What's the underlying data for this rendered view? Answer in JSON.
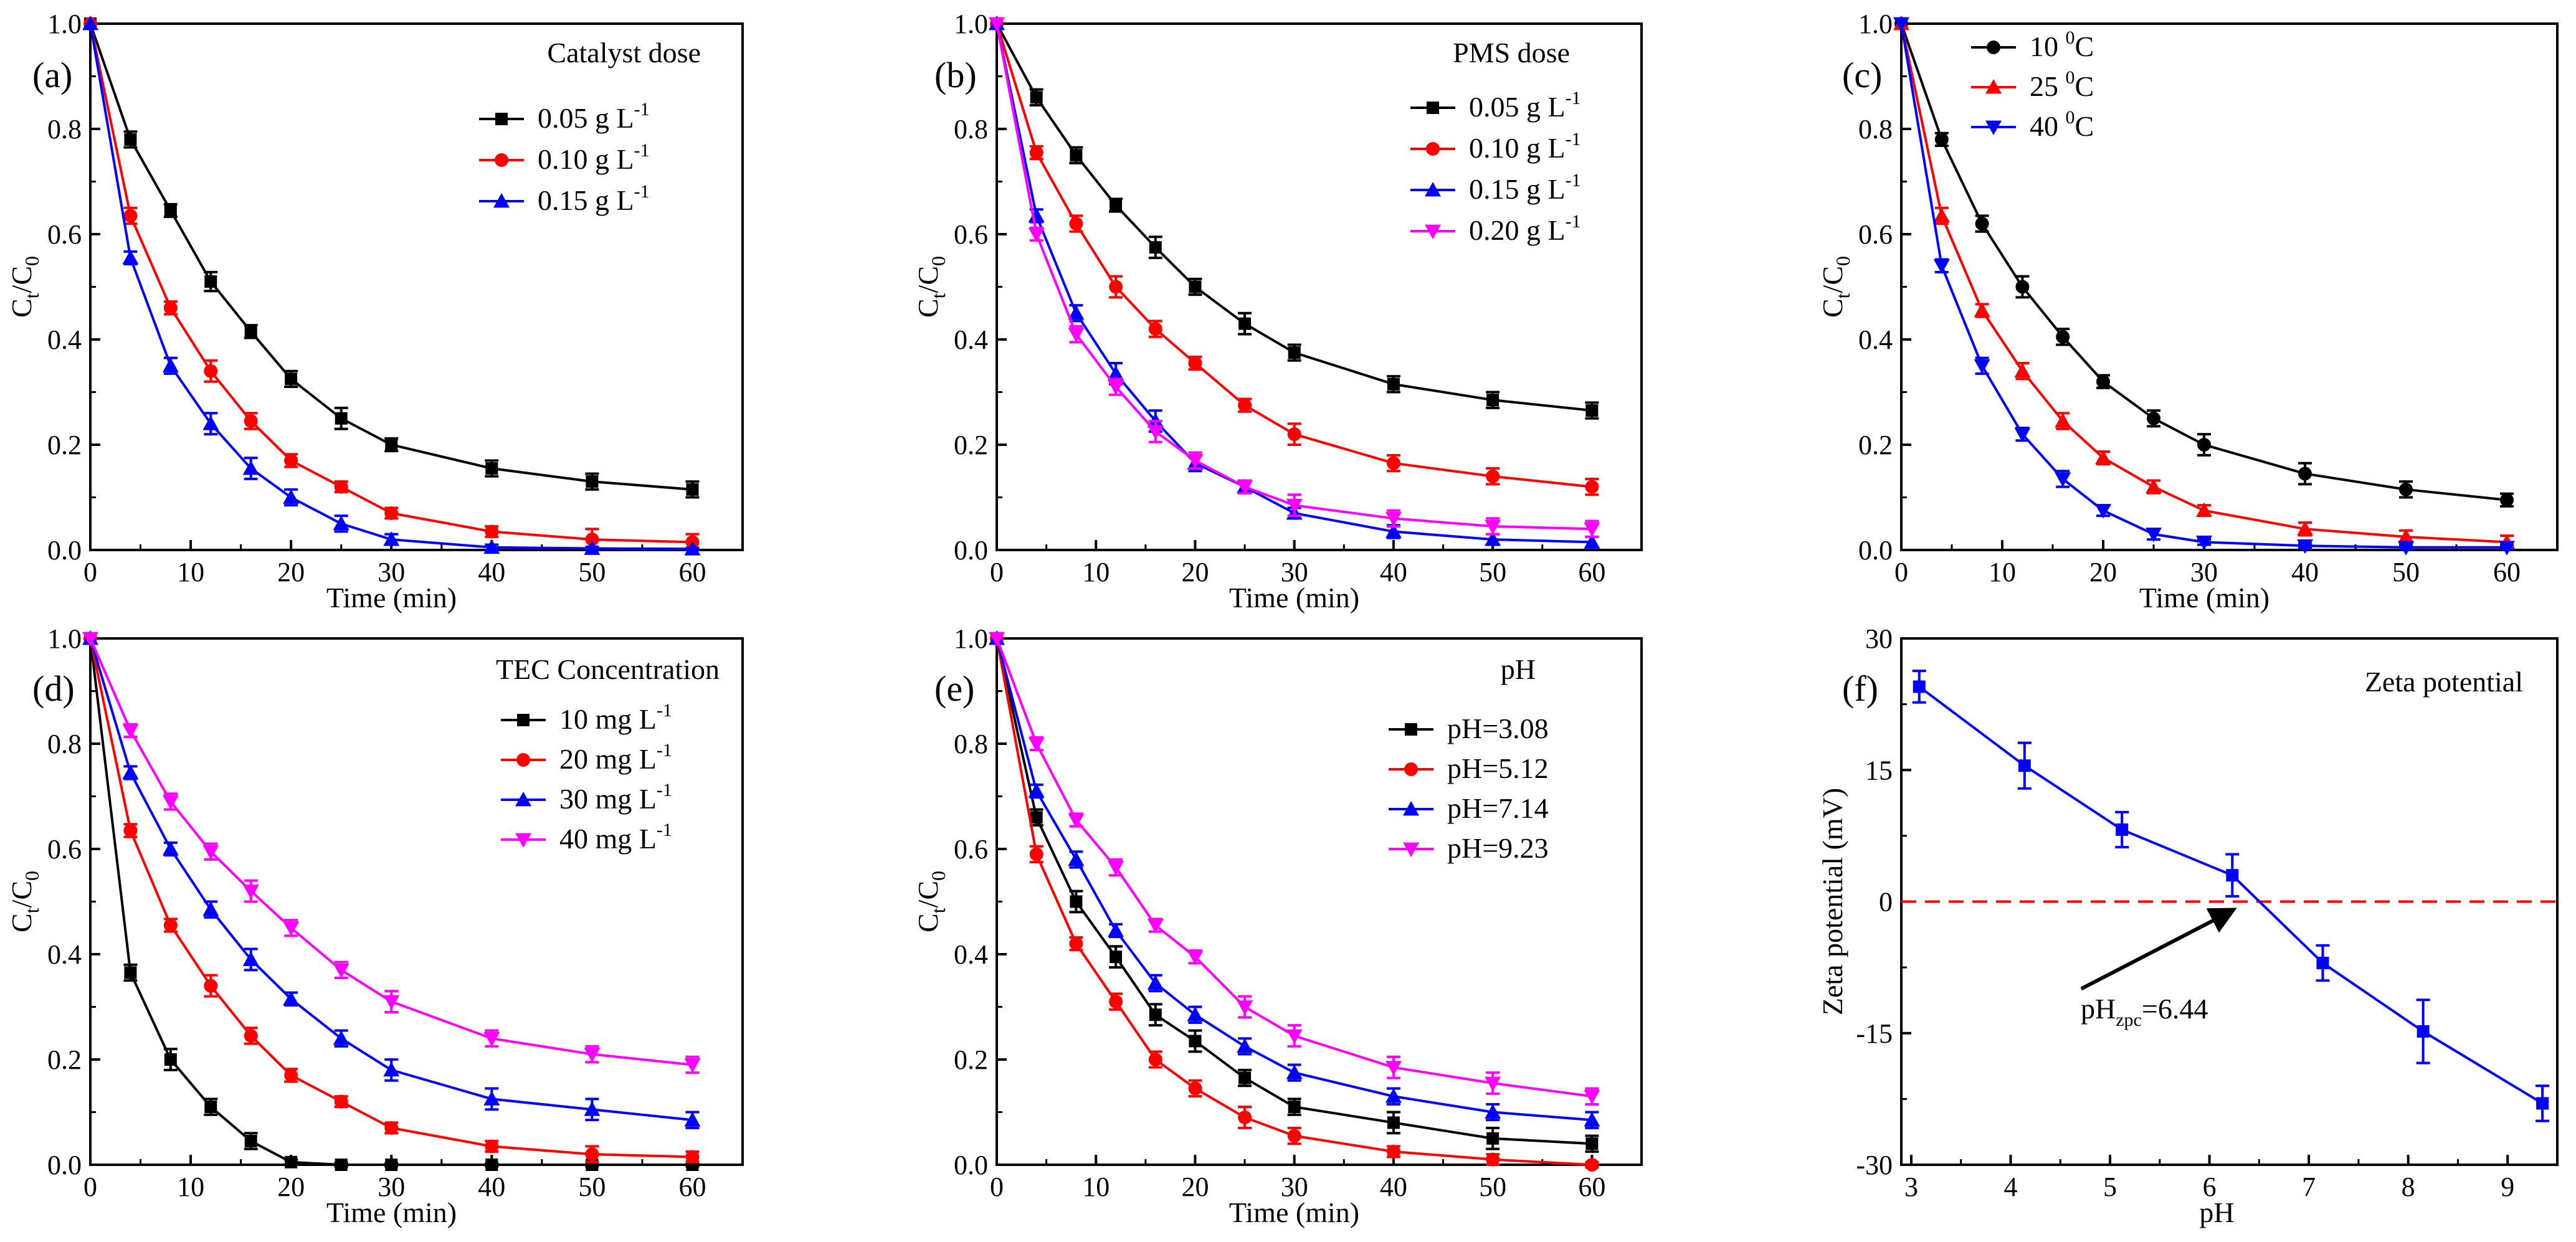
{
  "chart_data": [
    {
      "panel": "(a)",
      "type": "line",
      "title": "Catalyst dose",
      "xlabel": "Time (min)",
      "ylabel": "Ct/C0",
      "xlim": [
        0,
        65
      ],
      "ylim": [
        0,
        1.0
      ],
      "xticks": [
        0,
        10,
        20,
        30,
        40,
        50,
        60
      ],
      "yticks": [
        0.0,
        0.2,
        0.4,
        0.6,
        0.8,
        1.0
      ],
      "x": [
        0,
        4,
        8,
        12,
        16,
        20,
        25,
        30,
        40,
        50,
        60
      ],
      "series": [
        {
          "name": "0.05 g L",
          "sup": "-1",
          "color": "#000000",
          "marker": "square",
          "values": [
            1.0,
            0.78,
            0.645,
            0.51,
            0.415,
            0.325,
            0.25,
            0.2,
            0.155,
            0.13,
            0.115
          ],
          "errors": [
            0,
            0.015,
            0.012,
            0.018,
            0.012,
            0.015,
            0.02,
            0.012,
            0.015,
            0.015,
            0.015
          ]
        },
        {
          "name": "0.10 g L",
          "sup": "-1",
          "color": "#ff0000",
          "marker": "circle",
          "values": [
            1.0,
            0.635,
            0.46,
            0.34,
            0.245,
            0.17,
            0.12,
            0.07,
            0.035,
            0.02,
            0.015
          ],
          "errors": [
            0,
            0.015,
            0.012,
            0.02,
            0.015,
            0.012,
            0.01,
            0.01,
            0.01,
            0.02,
            0.015
          ]
        },
        {
          "name": "0.15 g L",
          "sup": "-1",
          "color": "#0000ff",
          "marker": "triangle-up",
          "values": [
            1.0,
            0.555,
            0.35,
            0.24,
            0.155,
            0.1,
            0.05,
            0.02,
            0.005,
            0.003,
            0.002
          ],
          "errors": [
            0,
            0.012,
            0.015,
            0.02,
            0.02,
            0.015,
            0.015,
            0.01,
            0.005,
            0.003,
            0.002
          ]
        }
      ]
    },
    {
      "panel": "(b)",
      "type": "line",
      "title": "PMS dose",
      "xlabel": "Time (min)",
      "ylabel": "Ct/C0",
      "xlim": [
        0,
        65
      ],
      "ylim": [
        0,
        1.0
      ],
      "xticks": [
        0,
        10,
        20,
        30,
        40,
        50,
        60
      ],
      "yticks": [
        0.0,
        0.2,
        0.4,
        0.6,
        0.8,
        1.0
      ],
      "x": [
        0,
        4,
        8,
        12,
        16,
        20,
        25,
        30,
        40,
        50,
        60
      ],
      "series": [
        {
          "name": "0.05 g L",
          "sup": "-1",
          "color": "#000000",
          "marker": "square",
          "values": [
            1.0,
            0.86,
            0.75,
            0.655,
            0.575,
            0.5,
            0.43,
            0.375,
            0.315,
            0.285,
            0.265
          ],
          "errors": [
            0,
            0.015,
            0.015,
            0.012,
            0.02,
            0.015,
            0.02,
            0.015,
            0.015,
            0.015,
            0.015
          ]
        },
        {
          "name": "0.10 g L",
          "sup": "-1",
          "color": "#ff0000",
          "marker": "circle",
          "values": [
            1.0,
            0.755,
            0.62,
            0.5,
            0.42,
            0.355,
            0.275,
            0.22,
            0.165,
            0.14,
            0.12
          ],
          "errors": [
            0,
            0.012,
            0.015,
            0.02,
            0.015,
            0.012,
            0.012,
            0.02,
            0.015,
            0.015,
            0.015
          ]
        },
        {
          "name": "0.15 g L",
          "sup": "-1",
          "color": "#0000ff",
          "marker": "triangle-up",
          "values": [
            1.0,
            0.635,
            0.45,
            0.335,
            0.245,
            0.165,
            0.12,
            0.07,
            0.035,
            0.02,
            0.015
          ],
          "errors": [
            0,
            0.012,
            0.015,
            0.02,
            0.02,
            0.015,
            0.012,
            0.01,
            0.012,
            0.01,
            0.01
          ]
        },
        {
          "name": "0.20 g L",
          "sup": "-1",
          "color": "#ff00ff",
          "marker": "triangle-down",
          "values": [
            1.0,
            0.6,
            0.41,
            0.31,
            0.225,
            0.17,
            0.12,
            0.085,
            0.06,
            0.045,
            0.04
          ],
          "errors": [
            0,
            0.012,
            0.015,
            0.015,
            0.02,
            0.015,
            0.012,
            0.02,
            0.015,
            0.015,
            0.015
          ]
        }
      ]
    },
    {
      "panel": "(c)",
      "type": "line",
      "title": "",
      "xlabel": "Time (min)",
      "ylabel": "Ct/C0",
      "xlim": [
        0,
        65
      ],
      "ylim": [
        0,
        1.0
      ],
      "xticks": [
        0,
        10,
        20,
        30,
        40,
        50,
        60
      ],
      "yticks": [
        0.0,
        0.2,
        0.4,
        0.6,
        0.8,
        1.0
      ],
      "x": [
        0,
        4,
        8,
        12,
        16,
        20,
        25,
        30,
        40,
        50,
        60
      ],
      "series": [
        {
          "name": "10 ",
          "sup": "0",
          "suffix": "C",
          "color": "#000000",
          "marker": "circle",
          "values": [
            1.0,
            0.78,
            0.62,
            0.5,
            0.405,
            0.32,
            0.25,
            0.2,
            0.145,
            0.115,
            0.095
          ],
          "errors": [
            0,
            0.012,
            0.015,
            0.02,
            0.015,
            0.012,
            0.015,
            0.02,
            0.02,
            0.015,
            0.012
          ]
        },
        {
          "name": "25 ",
          "sup": "0",
          "suffix": "C",
          "color": "#ff0000",
          "marker": "triangle-up",
          "values": [
            1.0,
            0.635,
            0.455,
            0.34,
            0.245,
            0.175,
            0.12,
            0.075,
            0.04,
            0.025,
            0.015
          ],
          "errors": [
            0,
            0.015,
            0.012,
            0.015,
            0.015,
            0.012,
            0.012,
            0.01,
            0.012,
            0.012,
            0.012
          ]
        },
        {
          "name": "40 ",
          "sup": "0",
          "suffix": "C",
          "color": "#0000ff",
          "marker": "triangle-down",
          "values": [
            1.0,
            0.54,
            0.35,
            0.22,
            0.135,
            0.075,
            0.03,
            0.015,
            0.008,
            0.005,
            0.005
          ],
          "errors": [
            0,
            0.012,
            0.015,
            0.012,
            0.015,
            0.01,
            0.01,
            0.005,
            0.004,
            0.004,
            0.004
          ]
        }
      ]
    },
    {
      "panel": "(d)",
      "type": "line",
      "title": "TEC Concentration",
      "xlabel": "Time (min)",
      "ylabel": "Ct/C0",
      "xlim": [
        0,
        65
      ],
      "ylim": [
        0,
        1.0
      ],
      "xticks": [
        0,
        10,
        20,
        30,
        40,
        50,
        60
      ],
      "yticks": [
        0.0,
        0.2,
        0.4,
        0.6,
        0.8,
        1.0
      ],
      "x": [
        0,
        4,
        8,
        12,
        16,
        20,
        25,
        30,
        40,
        50,
        60
      ],
      "series": [
        {
          "name": "10 mg L",
          "sup": "-1",
          "color": "#000000",
          "marker": "square",
          "values": [
            1.0,
            0.365,
            0.2,
            0.11,
            0.045,
            0.005,
            0.0,
            0.0,
            0.0,
            0.0,
            0.0
          ],
          "errors": [
            0,
            0.015,
            0.02,
            0.015,
            0.015,
            0.005,
            0.004,
            0.003,
            0.003,
            0.003,
            0.003
          ],
          "xs": [
            0,
            4,
            8,
            12,
            16,
            20,
            25,
            30,
            40,
            50,
            60
          ]
        },
        {
          "name": "20 mg L",
          "sup": "-1",
          "color": "#ff0000",
          "marker": "circle",
          "values": [
            1.0,
            0.635,
            0.455,
            0.34,
            0.245,
            0.17,
            0.12,
            0.07,
            0.035,
            0.02,
            0.015
          ],
          "errors": [
            0,
            0.012,
            0.012,
            0.02,
            0.015,
            0.012,
            0.01,
            0.01,
            0.01,
            0.015,
            0.01
          ]
        },
        {
          "name": "30 mg L",
          "sup": "-1",
          "color": "#0000ff",
          "marker": "triangle-up",
          "values": [
            1.0,
            0.745,
            0.6,
            0.485,
            0.39,
            0.315,
            0.24,
            0.18,
            0.125,
            0.105,
            0.085
          ],
          "errors": [
            0,
            0.012,
            0.012,
            0.015,
            0.02,
            0.012,
            0.015,
            0.02,
            0.02,
            0.02,
            0.015
          ]
        },
        {
          "name": "40 mg L",
          "sup": "-1",
          "color": "#ff00ff",
          "marker": "triangle-down",
          "values": [
            1.0,
            0.825,
            0.69,
            0.595,
            0.52,
            0.45,
            0.37,
            0.31,
            0.24,
            0.21,
            0.19
          ],
          "errors": [
            0,
            0.012,
            0.015,
            0.015,
            0.02,
            0.015,
            0.015,
            0.02,
            0.015,
            0.015,
            0.015
          ]
        }
      ]
    },
    {
      "panel": "(e)",
      "type": "line",
      "title": "pH",
      "xlabel": "Time (min)",
      "ylabel": "Ct/C0",
      "xlim": [
        0,
        65
      ],
      "ylim": [
        0,
        1.0
      ],
      "xticks": [
        0,
        10,
        20,
        30,
        40,
        50,
        60
      ],
      "yticks": [
        0.0,
        0.2,
        0.4,
        0.6,
        0.8,
        1.0
      ],
      "x": [
        0,
        4,
        8,
        12,
        16,
        20,
        25,
        30,
        40,
        50,
        60
      ],
      "series": [
        {
          "name": "pH=3.08",
          "sup": "",
          "color": "#000000",
          "marker": "square",
          "values": [
            1.0,
            0.66,
            0.5,
            0.395,
            0.285,
            0.235,
            0.165,
            0.11,
            0.08,
            0.05,
            0.04
          ],
          "errors": [
            0,
            0.015,
            0.02,
            0.02,
            0.02,
            0.02,
            0.015,
            0.015,
            0.02,
            0.02,
            0.015
          ]
        },
        {
          "name": "pH=5.12",
          "sup": "",
          "color": "#ff0000",
          "marker": "circle",
          "values": [
            1.0,
            0.59,
            0.42,
            0.31,
            0.2,
            0.145,
            0.09,
            0.055,
            0.025,
            0.01,
            0.0
          ],
          "errors": [
            0,
            0.015,
            0.012,
            0.015,
            0.015,
            0.015,
            0.02,
            0.015,
            0.01,
            0.01,
            0.005
          ]
        },
        {
          "name": "pH=7.14",
          "sup": "",
          "color": "#0000ff",
          "marker": "triangle-up",
          "values": [
            1.0,
            0.71,
            0.58,
            0.445,
            0.345,
            0.285,
            0.225,
            0.175,
            0.13,
            0.1,
            0.085
          ],
          "errors": [
            0,
            0.012,
            0.015,
            0.012,
            0.015,
            0.015,
            0.015,
            0.015,
            0.015,
            0.015,
            0.015
          ]
        },
        {
          "name": "pH=9.23",
          "sup": "",
          "color": "#ff00ff",
          "marker": "triangle-down",
          "values": [
            1.0,
            0.8,
            0.655,
            0.565,
            0.455,
            0.395,
            0.3,
            0.245,
            0.185,
            0.155,
            0.13
          ],
          "errors": [
            0,
            0.012,
            0.012,
            0.015,
            0.012,
            0.012,
            0.02,
            0.02,
            0.02,
            0.02,
            0.015
          ]
        }
      ]
    },
    {
      "panel": "(f)",
      "type": "line",
      "title": "Zeta potential",
      "xlabel": "pH",
      "ylabel": "Zeta potential (mV)",
      "xlim": [
        2.9,
        9.5
      ],
      "ylim": [
        -30,
        30
      ],
      "xticks": [
        3,
        4,
        5,
        6,
        7,
        8,
        9
      ],
      "yticks": [
        -30,
        -15,
        0,
        15,
        30
      ],
      "x": [
        3.08,
        4.14,
        5.12,
        6.23,
        7.14,
        8.15,
        9.35
      ],
      "series": [
        {
          "name": "Zeta potential",
          "color": "#0000ff",
          "marker": "square",
          "values": [
            24.5,
            15.5,
            8.2,
            3.0,
            -7.0,
            -14.8,
            -23.0
          ],
          "errors": [
            1.8,
            2.6,
            2.0,
            2.4,
            2.0,
            3.6,
            2.0
          ]
        }
      ],
      "reference_line": {
        "y": 0,
        "style": "dashed",
        "color": "#ff0000"
      },
      "annotation": {
        "text": "pH",
        "sub": "zpc",
        "suffix": "=6.44",
        "points_to_x": 6.44,
        "points_to_y": 0
      }
    }
  ]
}
